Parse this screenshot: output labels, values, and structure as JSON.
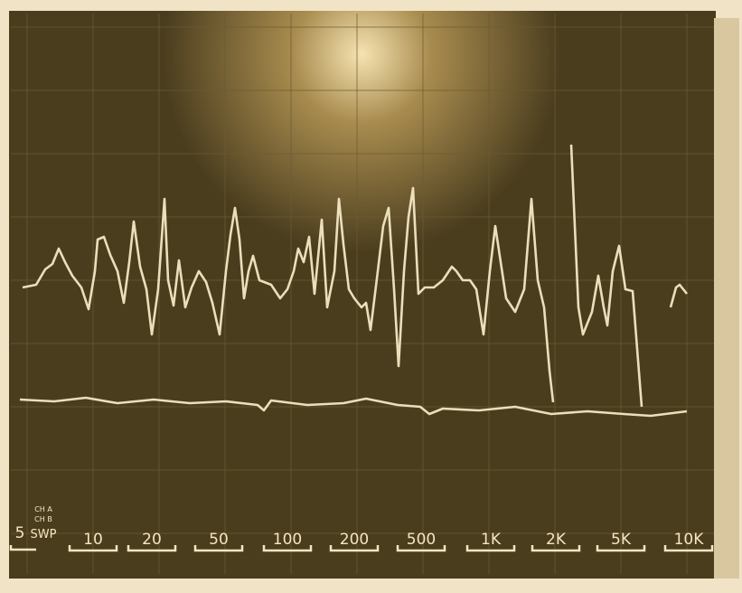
{
  "left_labels": [
    "5",
    "SWP"
  ],
  "channel_labels": [
    "CH A",
    "CH B"
  ],
  "frequency_labels": [
    "10",
    "20",
    "50",
    "100",
    "200",
    "500",
    "1K",
    "2K",
    "5K",
    "10K"
  ]
}
